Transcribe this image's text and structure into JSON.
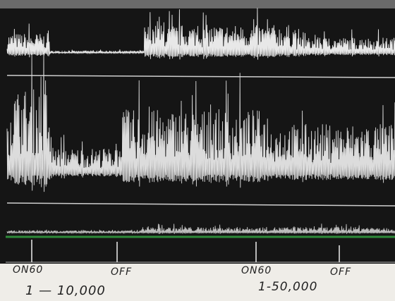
{
  "markers": [
    {
      "label": "ON60"
    },
    {
      "label": "OFF"
    },
    {
      "label": "ON60"
    },
    {
      "label": "OFF"
    }
  ],
  "scales": [
    "1 — 10,000",
    "1-50,000"
  ]
}
